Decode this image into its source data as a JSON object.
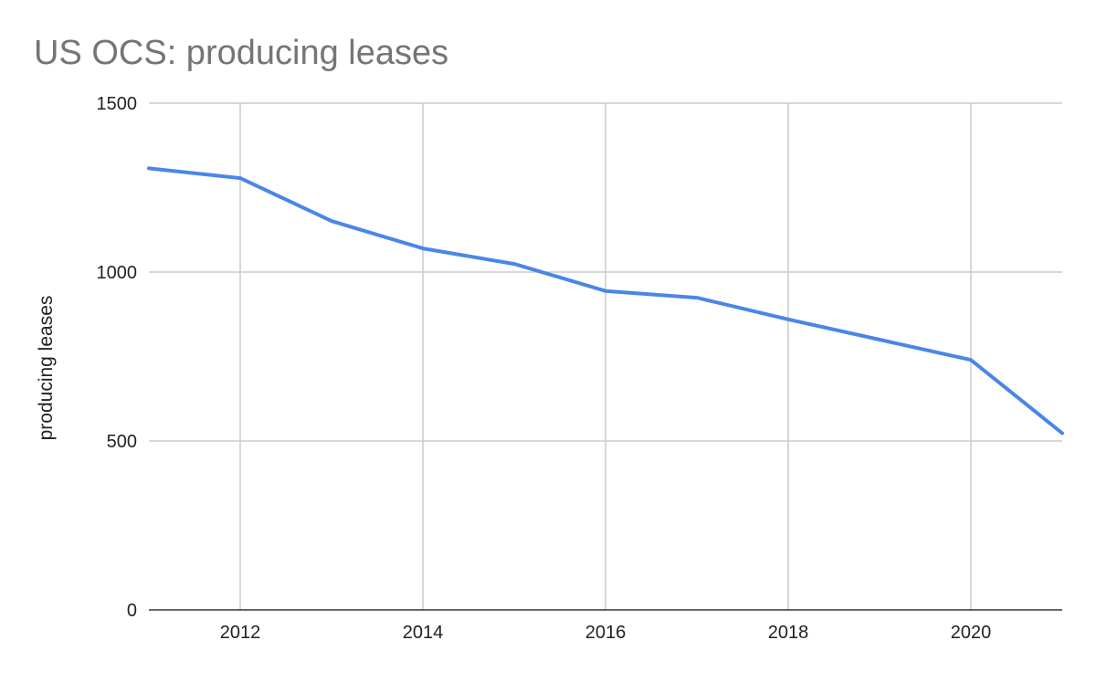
{
  "chart_data": {
    "type": "line",
    "title": "US OCS: producing leases",
    "xlabel": "",
    "ylabel": "producing leases",
    "xlim": [
      2011,
      2021
    ],
    "ylim": [
      0,
      1500
    ],
    "x_ticks": [
      2012,
      2014,
      2016,
      2018,
      2020
    ],
    "y_ticks": [
      0,
      500,
      1000,
      1500
    ],
    "grid": true,
    "legend": "none",
    "series": [
      {
        "color": "#4a86e8",
        "x": [
          2011,
          2012,
          2013,
          2014,
          2015,
          2016,
          2017,
          2018,
          2019,
          2020,
          2021
        ],
        "y": [
          1307,
          1278,
          1151,
          1070,
          1024,
          944,
          924,
          860,
          800,
          740,
          523
        ]
      }
    ]
  }
}
